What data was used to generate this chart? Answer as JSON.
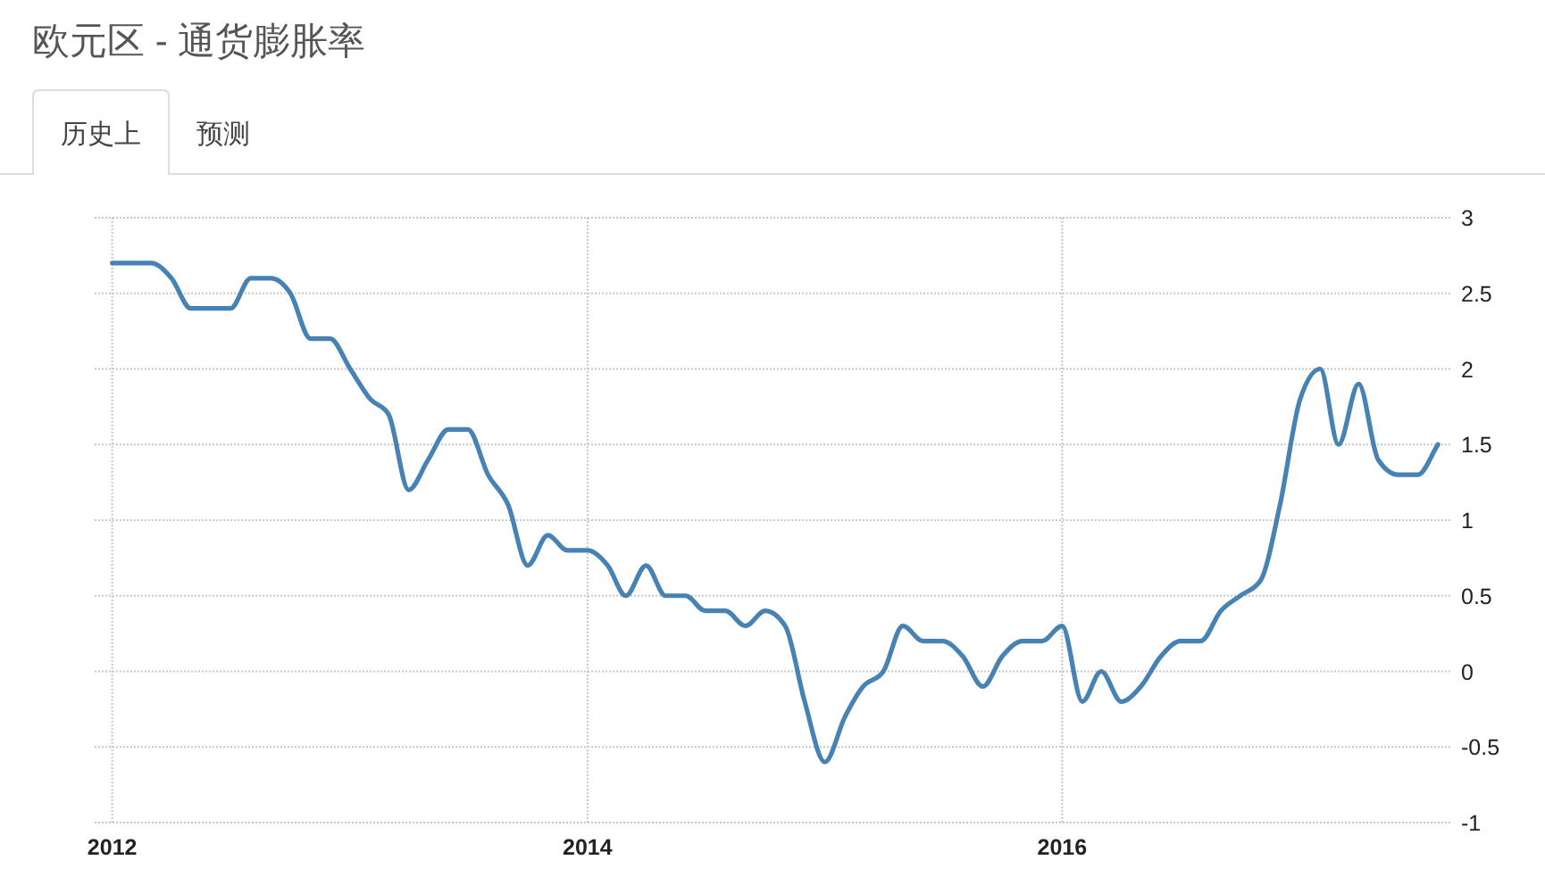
{
  "chart_data": {
    "type": "line",
    "title": "欧元区 - 通货膨胀率",
    "annotations": [
      "历史上",
      "预测"
    ],
    "x": [
      "2012-01",
      "2012-02",
      "2012-03",
      "2012-04",
      "2012-05",
      "2012-06",
      "2012-07",
      "2012-08",
      "2012-09",
      "2012-10",
      "2012-11",
      "2012-12",
      "2013-01",
      "2013-02",
      "2013-03",
      "2013-04",
      "2013-05",
      "2013-06",
      "2013-07",
      "2013-08",
      "2013-09",
      "2013-10",
      "2013-11",
      "2013-12",
      "2014-01",
      "2014-02",
      "2014-03",
      "2014-04",
      "2014-05",
      "2014-06",
      "2014-07",
      "2014-08",
      "2014-09",
      "2014-10",
      "2014-11",
      "2014-12",
      "2015-01",
      "2015-02",
      "2015-03",
      "2015-04",
      "2015-05",
      "2015-06",
      "2015-07",
      "2015-08",
      "2015-09",
      "2015-10",
      "2015-11",
      "2015-12",
      "2016-01",
      "2016-02",
      "2016-03",
      "2016-04",
      "2016-05",
      "2016-06",
      "2016-07",
      "2016-08",
      "2016-09",
      "2016-10",
      "2016-11",
      "2016-12",
      "2017-01",
      "2017-02",
      "2017-03",
      "2017-04",
      "2017-05",
      "2017-06",
      "2017-07",
      "2017-08"
    ],
    "series": [
      {
        "color": "#4682b4",
        "values": [
          2.7,
          2.7,
          2.7,
          2.6,
          2.4,
          2.4,
          2.4,
          2.6,
          2.6,
          2.5,
          2.2,
          2.2,
          2.0,
          1.8,
          1.7,
          1.2,
          1.4,
          1.6,
          1.6,
          1.3,
          1.1,
          0.7,
          0.9,
          0.8,
          0.8,
          0.7,
          0.5,
          0.7,
          0.5,
          0.5,
          0.4,
          0.4,
          0.3,
          0.4,
          0.3,
          -0.2,
          -0.6,
          -0.3,
          -0.1,
          0.0,
          0.3,
          0.2,
          0.2,
          0.1,
          -0.1,
          0.1,
          0.2,
          0.2,
          0.3,
          -0.2,
          0.0,
          -0.2,
          -0.1,
          0.1,
          0.2,
          0.2,
          0.4,
          0.5,
          0.6,
          1.1,
          1.8,
          2.0,
          1.5,
          1.9,
          1.4,
          1.3,
          1.3,
          1.5
        ]
      }
    ],
    "xlim": [
      "2011-12-05",
      "2017-08-20"
    ],
    "xticks": [
      {
        "value": "2012-01-01",
        "label": "2012"
      },
      {
        "value": "2014-01-01",
        "label": "2014"
      },
      {
        "value": "2016-01-01",
        "label": "2016"
      }
    ],
    "ylim": [
      -1,
      3
    ],
    "yticks": [
      -1,
      -0.5,
      0,
      0.5,
      1,
      1.5,
      2,
      2.5,
      3
    ],
    "grid": true
  }
}
